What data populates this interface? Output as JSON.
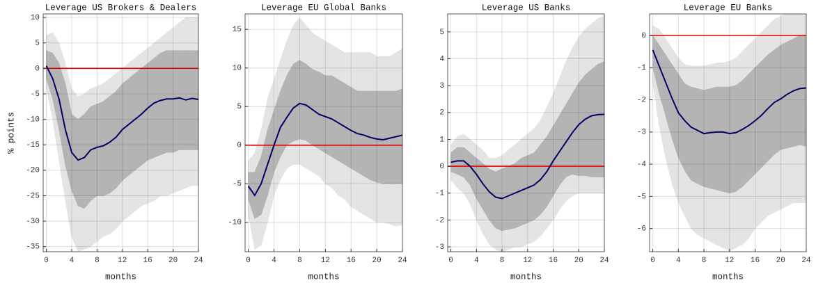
{
  "chart_data": [
    {
      "type": "line",
      "title": "Leverage US Brokers & Dealers",
      "x_label": "months",
      "y_label": "% points",
      "x": [
        0,
        1,
        2,
        3,
        4,
        5,
        6,
        7,
        8,
        9,
        10,
        11,
        12,
        13,
        14,
        15,
        16,
        17,
        18,
        19,
        20,
        21,
        22,
        23,
        24
      ],
      "xlim": [
        -0.5,
        24
      ],
      "xticks": [
        0,
        4,
        8,
        12,
        16,
        20,
        24
      ],
      "ylim": [
        -36,
        10.7
      ],
      "yticks": [
        -35,
        -30,
        -25,
        -20,
        -15,
        -10,
        -5,
        0,
        5,
        10
      ],
      "grid": true,
      "reference_line": 0,
      "reference_color": "#e00000",
      "bands": [
        {
          "color": "#e4e4e4",
          "lower": [
            -4,
            -10,
            -18,
            -26,
            -33,
            -36,
            -35.5,
            -35,
            -34,
            -33,
            -32.5,
            -31.5,
            -30,
            -29,
            -28,
            -27,
            -26.5,
            -26,
            -25,
            -25,
            -24.5,
            -24,
            -23.5,
            -23,
            -23
          ],
          "upper": [
            6.5,
            7,
            5,
            1,
            -4,
            -5.5,
            -5,
            -4,
            -3.5,
            -3,
            -2,
            -1,
            0,
            1,
            2,
            3,
            4,
            5,
            6,
            7,
            8,
            9,
            10,
            10,
            10
          ]
        },
        {
          "color": "#b4b4b4",
          "lower": [
            -2,
            -6,
            -12,
            -19,
            -24,
            -27,
            -27.5,
            -26,
            -25,
            -25,
            -24.5,
            -23.5,
            -22,
            -21,
            -20,
            -19,
            -18,
            -17.5,
            -17,
            -16.5,
            -16.5,
            -16,
            -16,
            -16,
            -16
          ],
          "upper": [
            3.5,
            3,
            1,
            -3,
            -9,
            -10,
            -9,
            -7.5,
            -7,
            -6.5,
            -5.5,
            -4.5,
            -3,
            -2,
            -1,
            0,
            1,
            2,
            3,
            3.5,
            3.5,
            3.5,
            3.5,
            3.5,
            3.5
          ]
        }
      ],
      "series": [
        {
          "color": "#000066",
          "values": [
            0.5,
            -2,
            -6,
            -12,
            -16.5,
            -18,
            -17.5,
            -16,
            -15.5,
            -15.2,
            -14.5,
            -13.5,
            -12,
            -11,
            -10,
            -9,
            -7.8,
            -6.8,
            -6.3,
            -6,
            -6,
            -5.8,
            -6.2,
            -5.9,
            -6.1
          ]
        }
      ]
    },
    {
      "type": "line",
      "title": "Leverage EU Global Banks",
      "x_label": "months",
      "x": [
        0,
        1,
        2,
        3,
        4,
        5,
        6,
        7,
        8,
        9,
        10,
        11,
        12,
        13,
        14,
        15,
        16,
        17,
        18,
        19,
        20,
        21,
        22,
        23,
        24
      ],
      "xlim": [
        -0.5,
        24
      ],
      "xticks": [
        0,
        4,
        8,
        12,
        16,
        20,
        24
      ],
      "ylim": [
        -13.8,
        17
      ],
      "yticks": [
        -10,
        -5,
        0,
        5,
        10,
        15
      ],
      "grid": true,
      "reference_line": 0,
      "reference_color": "#e00000",
      "bands": [
        {
          "color": "#e4e4e4",
          "lower": [
            -9,
            -13.5,
            -13,
            -10,
            -6.5,
            -4.5,
            -3,
            -2.5,
            -2.5,
            -3,
            -3.5,
            -4,
            -5,
            -5.5,
            -6.5,
            -7,
            -8,
            -8.5,
            -9,
            -9.5,
            -10,
            -10,
            -10.2,
            -10.5,
            -10.3
          ],
          "upper": [
            -2,
            -1,
            2,
            6,
            8.5,
            11,
            13.5,
            15.5,
            16.5,
            15.5,
            14.5,
            14,
            13.5,
            13,
            12.5,
            12,
            12,
            12,
            12,
            12,
            11.5,
            11.5,
            11.5,
            12,
            12.5
          ]
        },
        {
          "color": "#b4b4b4",
          "lower": [
            -7,
            -9.5,
            -9,
            -6.5,
            -3.5,
            -1.5,
            0,
            0.5,
            0.8,
            0.6,
            0,
            -0.5,
            -1,
            -1.5,
            -2,
            -2.5,
            -3,
            -3.5,
            -4,
            -4.5,
            -4.8,
            -5,
            -5,
            -5,
            -5
          ],
          "upper": [
            -3.5,
            -3.5,
            -1.5,
            2,
            4.5,
            7,
            9,
            10.5,
            11,
            10.5,
            9.8,
            9.5,
            9,
            9,
            8.5,
            8,
            7.5,
            7,
            7,
            7,
            7,
            7,
            7,
            7,
            7.3
          ]
        }
      ],
      "series": [
        {
          "color": "#000066",
          "values": [
            -5.3,
            -6.5,
            -5,
            -2.5,
            0,
            2.3,
            3.6,
            4.8,
            5.4,
            5.2,
            4.6,
            4,
            3.7,
            3.4,
            2.9,
            2.4,
            1.9,
            1.5,
            1.3,
            1,
            0.8,
            0.7,
            0.9,
            1.1,
            1.3
          ]
        }
      ]
    },
    {
      "type": "line",
      "title": "Leverage US Banks",
      "x_label": "months",
      "x": [
        0,
        1,
        2,
        3,
        4,
        5,
        6,
        7,
        8,
        9,
        10,
        11,
        12,
        13,
        14,
        15,
        16,
        17,
        18,
        19,
        20,
        21,
        22,
        23,
        24
      ],
      "xlim": [
        -0.5,
        24
      ],
      "xticks": [
        0,
        4,
        8,
        12,
        16,
        20,
        24
      ],
      "ylim": [
        -3.18,
        5.67
      ],
      "yticks": [
        -3,
        -2,
        -1,
        0,
        1,
        2,
        3,
        4,
        5
      ],
      "grid": true,
      "reference_line": 0,
      "reference_color": "#e00000",
      "bands": [
        {
          "color": "#e4e4e4",
          "lower": [
            -0.5,
            -0.8,
            -1,
            -1.4,
            -2,
            -2.5,
            -2.9,
            -3.1,
            -3.2,
            -3.1,
            -3,
            -3,
            -2.9,
            -2.8,
            -2.6,
            -2.3,
            -2,
            -1.6,
            -1.3,
            -1.1,
            -1,
            -1,
            -1,
            -1,
            -1
          ],
          "upper": [
            0.8,
            1.1,
            1.2,
            1,
            0.8,
            0.6,
            0.3,
            0.3,
            0.4,
            0.6,
            0.8,
            1,
            1.2,
            1.4,
            1.7,
            2.2,
            2.7,
            3.3,
            3.9,
            4.4,
            4.8,
            5.1,
            5.3,
            5.5,
            5.6
          ]
        },
        {
          "color": "#b4b4b4",
          "lower": [
            -0.2,
            -0.3,
            -0.4,
            -0.7,
            -1.2,
            -1.6,
            -2,
            -2.3,
            -2.4,
            -2.35,
            -2.3,
            -2.2,
            -2.1,
            -2,
            -1.8,
            -1.5,
            -1.1,
            -0.7,
            -0.4,
            -0.3,
            -0.35,
            -0.35,
            -0.4,
            -0.4,
            -0.4
          ],
          "upper": [
            0.5,
            0.7,
            0.7,
            0.5,
            0.3,
            0.1,
            -0.1,
            -0.2,
            -0.1,
            0,
            0.1,
            0.3,
            0.4,
            0.5,
            0.8,
            1.1,
            1.5,
            1.9,
            2.3,
            2.7,
            3.1,
            3.4,
            3.6,
            3.8,
            3.9
          ]
        }
      ],
      "series": [
        {
          "color": "#000066",
          "values": [
            0.15,
            0.2,
            0.2,
            0,
            -0.3,
            -0.65,
            -0.95,
            -1.15,
            -1.2,
            -1.1,
            -1,
            -0.9,
            -0.8,
            -0.7,
            -0.5,
            -0.2,
            0.2,
            0.55,
            0.9,
            1.25,
            1.55,
            1.75,
            1.88,
            1.92,
            1.93
          ]
        }
      ]
    },
    {
      "type": "line",
      "title": "Leverage EU Banks",
      "x_label": "months",
      "x": [
        0,
        1,
        2,
        3,
        4,
        5,
        6,
        7,
        8,
        9,
        10,
        11,
        12,
        13,
        14,
        15,
        16,
        17,
        18,
        19,
        20,
        21,
        22,
        23,
        24
      ],
      "xlim": [
        -0.5,
        24
      ],
      "xticks": [
        0,
        4,
        8,
        12,
        16,
        20,
        24
      ],
      "ylim": [
        -6.72,
        0.67
      ],
      "yticks": [
        -6,
        -5,
        -4,
        -3,
        -2,
        -1,
        0
      ],
      "grid": true,
      "reference_line": 0,
      "reference_color": "#e00000",
      "bands": [
        {
          "color": "#e4e4e4",
          "lower": [
            -1.5,
            -2.8,
            -3.8,
            -4.6,
            -5.2,
            -5.6,
            -6,
            -6.2,
            -6.3,
            -6.4,
            -6.5,
            -6.6,
            -6.7,
            -6.6,
            -6.5,
            -6.3,
            -6,
            -5.8,
            -5.6,
            -5.5,
            -5.4,
            -5.3,
            -5.2,
            -5.2,
            -5.2
          ],
          "upper": [
            0.3,
            0.2,
            -0.1,
            -0.4,
            -0.7,
            -0.9,
            -0.95,
            -0.95,
            -0.95,
            -0.9,
            -0.85,
            -0.85,
            -0.8,
            -0.7,
            -0.5,
            -0.3,
            -0.1,
            0.1,
            0.3,
            0.5,
            0.6,
            0.7,
            0.7,
            0.7,
            0.7
          ]
        },
        {
          "color": "#b4b4b4",
          "lower": [
            -1,
            -1.8,
            -2.5,
            -3.2,
            -3.8,
            -4.2,
            -4.5,
            -4.6,
            -4.7,
            -4.75,
            -4.8,
            -4.85,
            -4.9,
            -4.85,
            -4.7,
            -4.5,
            -4.3,
            -4.1,
            -3.9,
            -3.7,
            -3.55,
            -3.5,
            -3.45,
            -3.4,
            -3.45
          ],
          "upper": [
            0,
            -0.3,
            -0.6,
            -0.9,
            -1.2,
            -1.5,
            -1.6,
            -1.65,
            -1.7,
            -1.65,
            -1.6,
            -1.6,
            -1.6,
            -1.55,
            -1.4,
            -1.2,
            -1,
            -0.8,
            -0.6,
            -0.45,
            -0.3,
            -0.2,
            -0.1,
            0,
            0
          ]
        }
      ],
      "series": [
        {
          "color": "#000066",
          "values": [
            -0.45,
            -0.95,
            -1.45,
            -1.95,
            -2.4,
            -2.65,
            -2.85,
            -2.95,
            -3.05,
            -3.02,
            -3,
            -3,
            -3.05,
            -3.02,
            -2.92,
            -2.8,
            -2.65,
            -2.48,
            -2.27,
            -2.08,
            -1.97,
            -1.83,
            -1.72,
            -1.65,
            -1.63
          ]
        }
      ]
    }
  ]
}
